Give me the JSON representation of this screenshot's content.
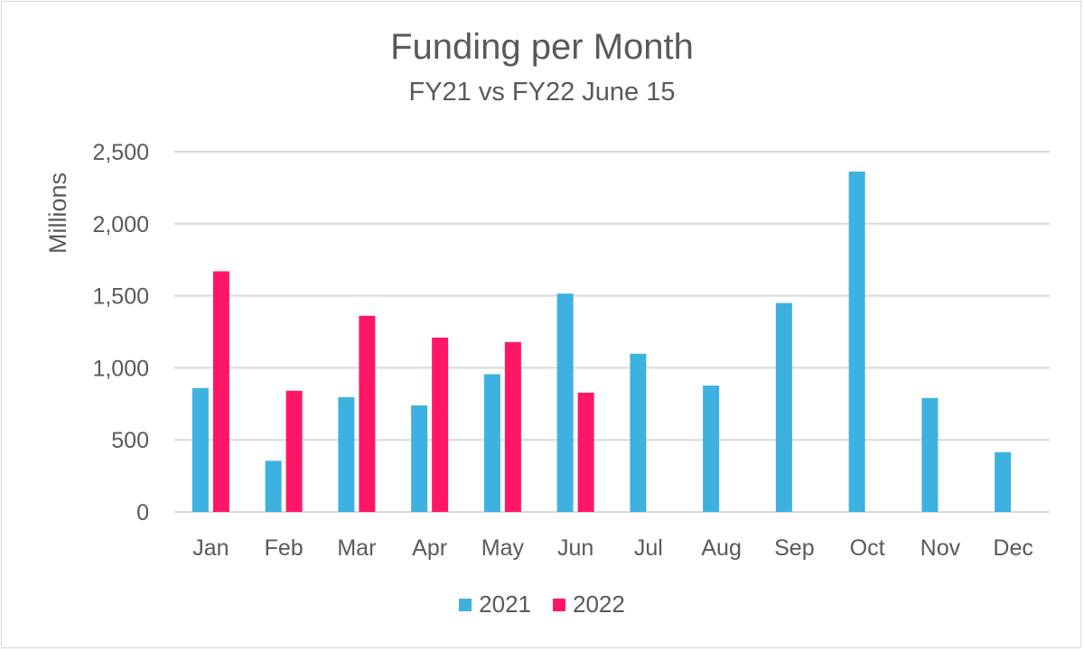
{
  "chart_data": {
    "type": "bar",
    "title": "Funding per Month",
    "subtitle": "FY21 vs FY22 June 15",
    "xlabel": "",
    "ylabel": "Millions",
    "ylim": [
      0,
      2500
    ],
    "yticks": [
      0,
      500,
      1000,
      1500,
      2000,
      2500
    ],
    "ytick_labels": [
      "0",
      "500",
      "1,000",
      "1,500",
      "2,000",
      "2,500"
    ],
    "grid": true,
    "legend_position": "bottom",
    "categories": [
      "Jan",
      "Feb",
      "Mar",
      "Apr",
      "May",
      "Jun",
      "Jul",
      "Aug",
      "Sep",
      "Oct",
      "Nov",
      "Dec"
    ],
    "series": [
      {
        "name": "2021",
        "color": "#3DB2E0",
        "values": [
          860,
          355,
          797,
          739,
          956,
          1515,
          1098,
          877,
          1450,
          2362,
          791,
          415
        ]
      },
      {
        "name": "2022",
        "color": "#FF1667",
        "values": [
          1670,
          841,
          1361,
          1210,
          1179,
          828,
          null,
          null,
          null,
          null,
          null,
          null
        ]
      }
    ]
  }
}
